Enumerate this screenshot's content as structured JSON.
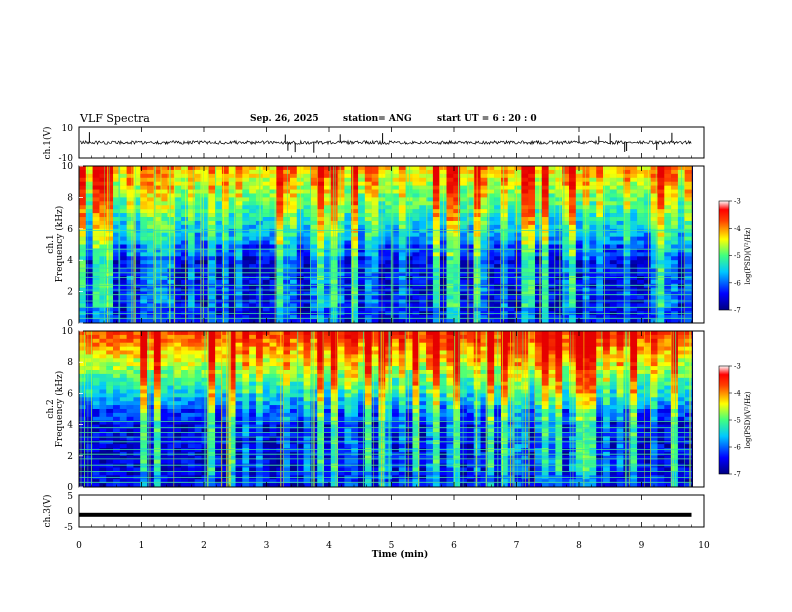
{
  "header": {
    "title": "VLF Spectra",
    "date": "Sep. 26, 2025",
    "station": "station= ANG",
    "start": "start UT =  6 : 20 : 0"
  },
  "chart_data": [
    {
      "type": "line",
      "panel": "ch1-waveform",
      "ylabel": "ch.1(V)",
      "ylim": [
        -10,
        10
      ],
      "yticks": [
        "10",
        "-10"
      ],
      "x": [
        0,
        9.8
      ],
      "values": [
        0,
        0
      ],
      "description": "noisy signal near 0 V with occasional spikes"
    },
    {
      "type": "heatmap",
      "panel": "ch1-spectrogram",
      "ylabel": "ch.1 Frequency (kHz)",
      "ylim": [
        0,
        10
      ],
      "yticks": [
        "0",
        "2",
        "4",
        "6",
        "8",
        "10"
      ],
      "xlim": [
        0,
        9.8
      ],
      "colorbar": {
        "label": "log(PSD)(V²/Hz)",
        "range": [
          -7,
          -3
        ],
        "ticks": [
          "-3",
          "-4",
          "-5",
          "-6",
          "-7"
        ]
      },
      "upper_band_intensity": 0.55,
      "narrowband_lines_khz": [
        0.3,
        0.6,
        1.0,
        1.4,
        1.8,
        2.1,
        2.4,
        2.9,
        3.2,
        3.5,
        4.7,
        5.9
      ]
    },
    {
      "type": "heatmap",
      "panel": "ch2-spectrogram",
      "ylabel": "ch.2 Frequency (kHz)",
      "ylim": [
        0,
        10
      ],
      "yticks": [
        "0",
        "2",
        "4",
        "6",
        "8",
        "10"
      ],
      "xlim": [
        0,
        9.8
      ],
      "colorbar": {
        "label": "log(PSD)(V²/Hz)",
        "range": [
          -7,
          -3
        ],
        "ticks": [
          "-3",
          "-4",
          "-5",
          "-6",
          "-7"
        ]
      },
      "upper_band_intensity": 0.75,
      "narrowband_lines_khz": [
        0.3,
        0.6,
        1.0,
        1.4,
        1.8,
        2.1,
        2.4,
        2.9,
        3.2,
        3.5,
        3.8,
        4.2
      ]
    },
    {
      "type": "line",
      "panel": "ch3-waveform",
      "ylabel": "ch.3(V)",
      "ylim": [
        -5,
        5
      ],
      "yticks": [
        "5",
        "0",
        "-5"
      ],
      "x": [
        0,
        9.8
      ],
      "values": [
        -1.2,
        -1.2
      ]
    }
  ],
  "xaxis": {
    "label": "Time (min)",
    "ticks": [
      "0",
      "1",
      "2",
      "3",
      "4",
      "5",
      "6",
      "7",
      "8",
      "9",
      "10"
    ],
    "range": [
      0,
      10
    ]
  }
}
